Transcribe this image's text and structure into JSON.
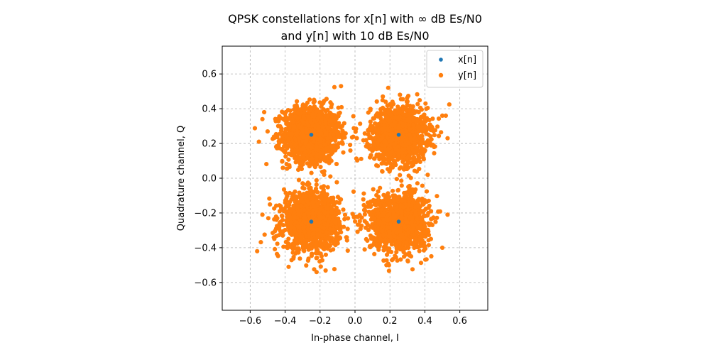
{
  "chart_data": {
    "type": "scatter",
    "title": {
      "line1": "QPSK constellations for x[n] with ∞ dB Es/N0",
      "line2": "and y[n] with 10 dB Es/N0"
    },
    "xlabel": "In-phase channel, I",
    "ylabel": "Quadrature channel, Q",
    "xlim": [
      -0.76,
      0.76
    ],
    "ylim": [
      -0.76,
      0.76
    ],
    "xticks": [
      -0.6,
      -0.4,
      -0.2,
      0.0,
      0.2,
      0.4,
      0.6
    ],
    "yticks": [
      -0.6,
      -0.4,
      -0.2,
      0.0,
      0.2,
      0.4,
      0.6
    ],
    "xtick_labels": [
      "−0.6",
      "−0.4",
      "−0.2",
      "0.0",
      "0.2",
      "0.4",
      "0.6"
    ],
    "ytick_labels": [
      "−0.6",
      "−0.4",
      "−0.2",
      "0.0",
      "0.2",
      "0.4",
      "0.6"
    ],
    "grid": true,
    "legend": {
      "position": "top-right",
      "entries": [
        {
          "label": "x[n]",
          "color": "#1f77b4"
        },
        {
          "label": "y[n]",
          "color": "#ff7f0e"
        }
      ]
    },
    "series": [
      {
        "name": "x[n]",
        "color": "#1f77b4",
        "points": [
          [
            -0.25,
            0.25
          ],
          [
            0.25,
            0.25
          ],
          [
            -0.25,
            -0.25
          ],
          [
            0.25,
            -0.25
          ]
        ]
      },
      {
        "name": "y[n]",
        "color": "#ff7f0e",
        "distribution": "gaussian cloud around each x[n] symbol",
        "centers": [
          [
            -0.25,
            0.25
          ],
          [
            0.25,
            0.25
          ],
          [
            -0.25,
            -0.25
          ],
          [
            0.25,
            -0.25
          ]
        ],
        "std": 0.08,
        "points_per_center": 1400,
        "outliers": [
          [
            -0.55,
            0.21
          ],
          [
            -0.53,
            0.34
          ],
          [
            -0.52,
            0.38
          ],
          [
            -0.08,
            0.53
          ],
          [
            0.19,
            0.52
          ],
          [
            0.5,
            0.36
          ],
          [
            0.53,
            0.23
          ],
          [
            0.52,
            0.36
          ],
          [
            -0.56,
            -0.42
          ],
          [
            -0.53,
            -0.21
          ],
          [
            -0.38,
            -0.51
          ],
          [
            -0.22,
            -0.54
          ],
          [
            0.18,
            -0.5
          ],
          [
            0.53,
            -0.21
          ],
          [
            0.5,
            -0.4
          ],
          [
            -0.05,
            -0.34
          ]
        ]
      }
    ]
  }
}
